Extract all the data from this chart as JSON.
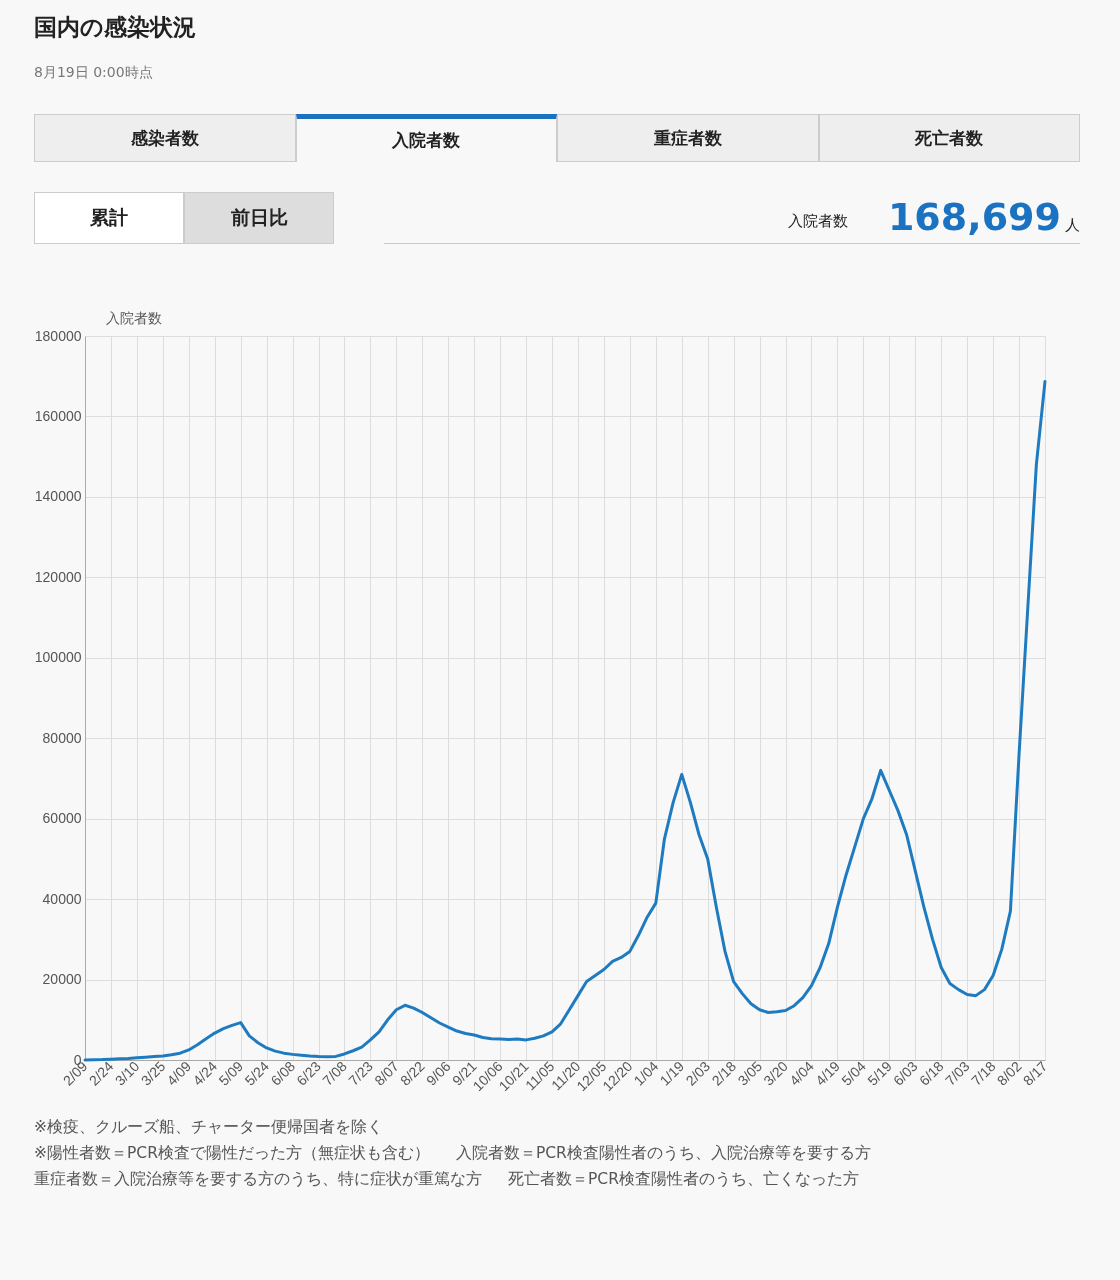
{
  "chart_data": {
    "type": "line",
    "title": "国内の感染状況",
    "subtitle": "8月19日 0:00時点",
    "annotations": [
      "感染者数",
      "入院者数",
      "重症者数",
      "死亡者数",
      "累計",
      "前日比",
      "入院者数",
      "168,699",
      "人",
      "※検疫、クルーズ船、チャーター便帰国者を除く",
      "※陽性者数＝PCR検査で陽性だった方（無症状も含む）",
      "入院者数＝PCR検査陽性者のうち、入院治療等を要する方",
      "重症者数＝入院治療等を要する方のうち、特に症状が重篤な方",
      "死亡者数＝PCR検査陽性者のうち、亡くなった方"
    ],
    "categories": [
      "2/09",
      null,
      null,
      "2/24",
      null,
      null,
      "3/10",
      null,
      null,
      "3/25",
      null,
      null,
      "4/09",
      null,
      null,
      "4/24",
      null,
      null,
      "5/09",
      null,
      null,
      "5/24",
      null,
      null,
      "6/08",
      null,
      null,
      "6/23",
      null,
      null,
      "7/08",
      null,
      null,
      "7/23",
      null,
      null,
      "8/07",
      null,
      null,
      "8/22",
      null,
      null,
      "9/06",
      null,
      null,
      "9/21",
      null,
      null,
      "10/06",
      null,
      null,
      "10/21",
      null,
      null,
      "11/05",
      null,
      null,
      "11/20",
      null,
      null,
      "12/05",
      null,
      null,
      "12/20",
      null,
      null,
      "1/04",
      null,
      null,
      "1/19",
      null,
      null,
      "2/03",
      null,
      null,
      "2/18",
      null,
      null,
      "3/05",
      null,
      null,
      "3/20",
      null,
      null,
      "4/04",
      null,
      null,
      "4/19",
      null,
      null,
      "5/04",
      null,
      null,
      "5/19",
      null,
      null,
      "6/03",
      null,
      null,
      "6/18",
      null,
      null,
      "7/03",
      null,
      null,
      "7/18",
      null,
      null,
      "8/02",
      null,
      null,
      "8/17"
    ],
    "series": [
      {
        "name": "入院者数",
        "color": "#1f7bc0",
        "values": [
          0,
          50,
          100,
          200,
          300,
          400,
          550,
          700,
          850,
          1000,
          1300,
          1700,
          2500,
          3800,
          5300,
          6700,
          7800,
          8600,
          9300,
          6000,
          4300,
          3000,
          2200,
          1700,
          1400,
          1200,
          1000,
          850,
          800,
          900,
          1500,
          2300,
          3200,
          5000,
          7000,
          10000,
          12500,
          13600,
          12900,
          11800,
          10500,
          9200,
          8200,
          7200,
          6600,
          6200,
          5600,
          5300,
          5200,
          5100,
          5200,
          5000,
          5400,
          6000,
          7000,
          9000,
          12500,
          16000,
          19500,
          21000,
          22500,
          24500,
          25500,
          27000,
          31000,
          35500,
          39000,
          55000,
          64000,
          71000,
          64000,
          56000,
          50000,
          38000,
          27000,
          19500,
          16500,
          14000,
          12500,
          11800,
          12000,
          12300,
          13500,
          15500,
          18500,
          23000,
          29000,
          38000,
          46000,
          53000,
          60000,
          65000,
          72000,
          67000,
          62000,
          56000,
          47000,
          38000,
          30000,
          23000,
          19000,
          17500,
          16300,
          16000,
          17500,
          21000,
          27500,
          37000,
          76000,
          112000,
          148000,
          168699
        ]
      }
    ],
    "ylim": [
      0,
      180000
    ],
    "yticks": [
      0,
      20000,
      40000,
      60000,
      80000,
      100000,
      120000,
      140000,
      160000,
      180000
    ],
    "grid": true,
    "legend": "top",
    "marker": "none",
    "line_style": "solid"
  }
}
